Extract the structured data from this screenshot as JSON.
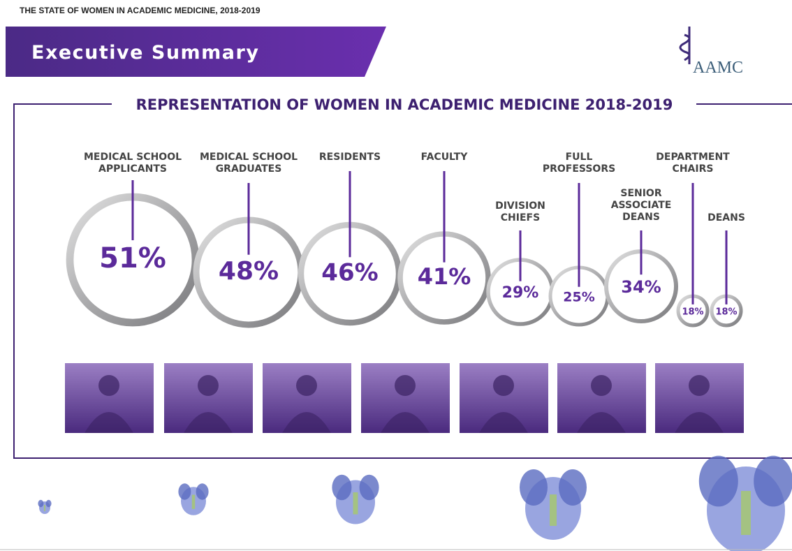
{
  "header": {
    "title": "THE STATE OF WOMEN IN ACADEMIC MEDICINE, 2018-2019"
  },
  "banner": {
    "title": "Executive Summary"
  },
  "logo": {
    "text": "AAMC"
  },
  "section": {
    "title": "REPRESENTATION OF WOMEN IN ACADEMIC MEDICINE 2018-2019"
  },
  "items": [
    {
      "label_lines": [
        "MEDICAL SCHOOL",
        "APPLICANTS"
      ],
      "value": "51%"
    },
    {
      "label_lines": [
        "MEDICAL SCHOOL",
        "GRADUATES"
      ],
      "value": "48%"
    },
    {
      "label_lines": [
        "RESIDENTS"
      ],
      "value": "46%"
    },
    {
      "label_lines": [
        "FACULTY"
      ],
      "value": "41%"
    },
    {
      "label_lines": [
        "DIVISION",
        "CHIEFS"
      ],
      "value": "29%"
    },
    {
      "label_lines": [
        "FULL",
        "PROFESSORS"
      ],
      "value": "25%"
    },
    {
      "label_lines": [
        "SENIOR",
        "ASSOCIATE",
        "DEANS"
      ],
      "value": "34%"
    },
    {
      "label_lines": [
        "DEPARTMENT",
        "CHAIRS"
      ],
      "value": "18%"
    },
    {
      "label_lines": [
        "DEANS"
      ],
      "value": "18%"
    }
  ]
}
